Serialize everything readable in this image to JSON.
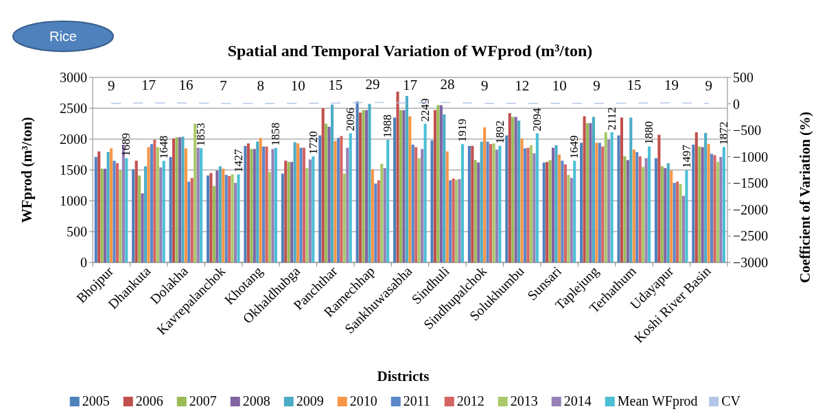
{
  "chart_data": {
    "type": "bar",
    "title": "Spatial and Temporal Variation of WFprod (m³/ton)",
    "xlabel": "Districts",
    "ylabel": "WFprod (m³/ton)",
    "y2label": "Coefficient of Variation (%)",
    "annotations": [
      "Rice"
    ],
    "categories": [
      "Bhojpur",
      "Dhankuta",
      "Dolakha",
      "Kavrepalanchok",
      "Khotang",
      "Okhaldhubga",
      "Panchthar",
      "Ramechhap",
      "Sankhuwasabha",
      "Sindhuli",
      "Sindhupalchok",
      "Solukhumbu",
      "Sunsari",
      "Taplejung",
      "Terhathum",
      "Udayapur",
      "Koshi  River Basin"
    ],
    "ylim": [
      0,
      3000
    ],
    "yticks": [
      0,
      500,
      1000,
      1500,
      2000,
      2500,
      3000
    ],
    "y2lim": [
      -3000,
      500
    ],
    "y2ticks": [
      -3000,
      -2500,
      -2000,
      -1500,
      -1000,
      -500,
      0,
      500
    ],
    "grid": "y",
    "legend": "bottom",
    "series": [
      {
        "name": "2005",
        "color": "#4f81bd",
        "values": [
          1710,
          1510,
          1710,
          1410,
          1890,
          1440,
          2060,
          2610,
          2350,
          1980,
          1890,
          2060,
          1620,
          1940,
          2060,
          1690,
          1910
        ]
      },
      {
        "name": "2006",
        "color": "#c0504d",
        "values": [
          1800,
          1650,
          2010,
          1450,
          1930,
          1650,
          2500,
          2430,
          2770,
          2470,
          1890,
          2420,
          1630,
          2370,
          2350,
          2070,
          2110
        ]
      },
      {
        "name": "2007",
        "color": "#9bbb59",
        "values": [
          1520,
          1410,
          2030,
          1240,
          1840,
          1630,
          2250,
          2470,
          2470,
          2550,
          1660,
          2360,
          1660,
          2260,
          1720,
          1560,
          1880
        ]
      },
      {
        "name": "2008",
        "color": "#8064a2",
        "values": [
          1520,
          1120,
          2030,
          1490,
          1840,
          1630,
          2200,
          2470,
          2470,
          2550,
          1620,
          2360,
          1860,
          2260,
          1660,
          1530,
          1870
        ]
      },
      {
        "name": "2009",
        "color": "#4bacc6",
        "values": [
          1790,
          1560,
          2040,
          1560,
          1960,
          1950,
          2560,
          2570,
          2700,
          2400,
          1960,
          2300,
          1900,
          2360,
          2350,
          1610,
          2100
        ]
      },
      {
        "name": "2010",
        "color": "#f79646",
        "values": [
          1850,
          1870,
          1850,
          1520,
          2020,
          1930,
          1970,
          1510,
          2370,
          1800,
          2190,
          2010,
          1750,
          1940,
          1830,
          1490,
          1920
        ]
      },
      {
        "name": "2011",
        "color": "#5b87c9",
        "values": [
          1650,
          1920,
          1310,
          1420,
          1880,
          1860,
          2020,
          1280,
          1910,
          1330,
          1960,
          1850,
          1650,
          1940,
          1790,
          1290,
          1760
        ]
      },
      {
        "name": "2012",
        "color": "#d46462",
        "values": [
          1610,
          1990,
          1370,
          1400,
          1880,
          1860,
          2050,
          1330,
          1870,
          1360,
          1920,
          1860,
          1590,
          1880,
          1720,
          1310,
          1740
        ]
      },
      {
        "name": "2013",
        "color": "#a9c96a",
        "values": [
          1490,
          1870,
          2250,
          1430,
          1470,
          1530,
          1440,
          1600,
          1690,
          1340,
          1930,
          1900,
          1420,
          2110,
          1550,
          1270,
          1630
        ]
      },
      {
        "name": "2014",
        "color": "#9680b5",
        "values": [
          1910,
          1540,
          1860,
          1290,
          1840,
          1670,
          1860,
          1530,
          1840,
          1350,
          1830,
          1770,
          1370,
          1990,
          1690,
          1080,
          1710
        ]
      },
      {
        "name": "Mean WFprod",
        "color": "#4bbfd6",
        "values": [
          1689,
          1648,
          1853,
          1427,
          1858,
          1720,
          2096,
          1988,
          2249,
          1919,
          1892,
          2094,
          1649,
          2112,
          1880,
          1497,
          1872
        ],
        "value_labels": [
          "1689",
          "1648",
          "1853",
          "1427",
          "1858",
          "1720",
          "2096",
          "1988",
          "2249",
          "1919",
          "1892",
          "2094",
          "1649",
          "2112",
          "1880",
          "1497",
          "1872"
        ]
      },
      {
        "name": "CV",
        "type": "line",
        "axis": "y2",
        "line_style": "dashed",
        "color": "#b4c6e7",
        "values": [
          9,
          17,
          16,
          7,
          8,
          10,
          15,
          29,
          17,
          28,
          9,
          12,
          10,
          9,
          15,
          19,
          9
        ],
        "value_labels": [
          "9",
          "17",
          "16",
          "7",
          "8",
          "10",
          "15",
          "29",
          "17",
          "28",
          "9",
          "12",
          "10",
          "9",
          "15",
          "19",
          "9"
        ]
      }
    ]
  }
}
